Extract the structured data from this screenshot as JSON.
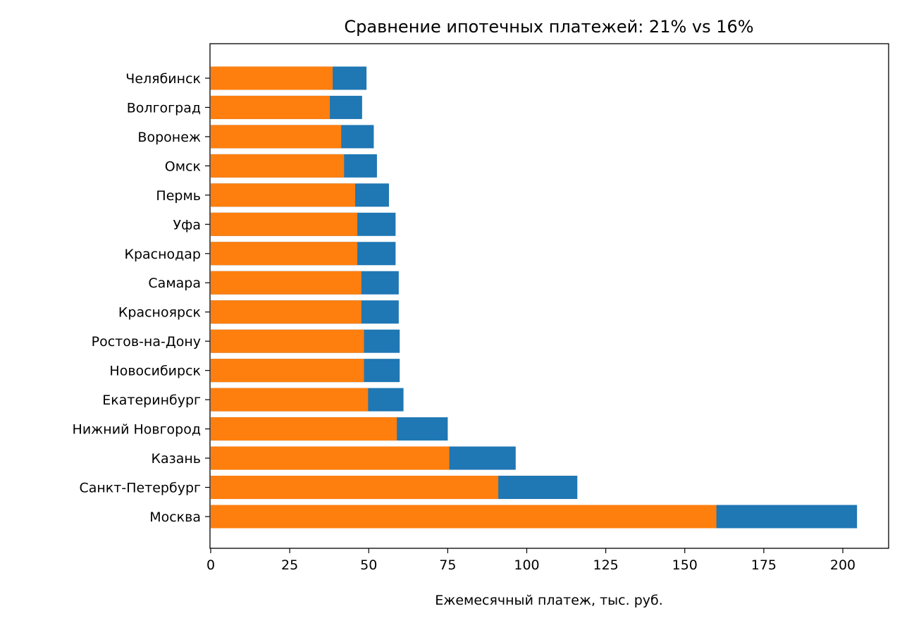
{
  "chart_data": {
    "type": "bar",
    "orientation": "horizontal",
    "title": "Сравнение ипотечных платежей: 21% vs 16%",
    "xlabel": "Ежемесячный платеж, тыс. руб.",
    "ylabel": "",
    "xlim": [
      0,
      215
    ],
    "xticks": [
      "0",
      "25",
      "50",
      "75",
      "100",
      "125",
      "150",
      "175",
      "200"
    ],
    "grid": false,
    "legend": "none",
    "overlay": true,
    "categories": [
      "Москва",
      "Санкт-Петербург",
      "Казань",
      "Нижний Новгород",
      "Екатеринбург",
      "Новосибирск",
      "Ростов-на-Дону",
      "Красноярск",
      "Самара",
      "Краснодар",
      "Уфа",
      "Пермь",
      "Омск",
      "Воронеж",
      "Волгоград",
      "Челябинск"
    ],
    "series": [
      {
        "color": "#1f77b4",
        "values": [
          204.5,
          116,
          96.5,
          75,
          61,
          59.8,
          59.8,
          59.5,
          59.5,
          58.5,
          58.5,
          56.4,
          52.6,
          51.6,
          47.9,
          49.3
        ]
      },
      {
        "color": "#ff7f0e",
        "values": [
          160,
          91,
          75.5,
          58.9,
          49.8,
          48.5,
          48.5,
          47.7,
          47.7,
          46.4,
          46.4,
          45.7,
          42.2,
          41.3,
          37.7,
          38.6
        ]
      }
    ]
  }
}
